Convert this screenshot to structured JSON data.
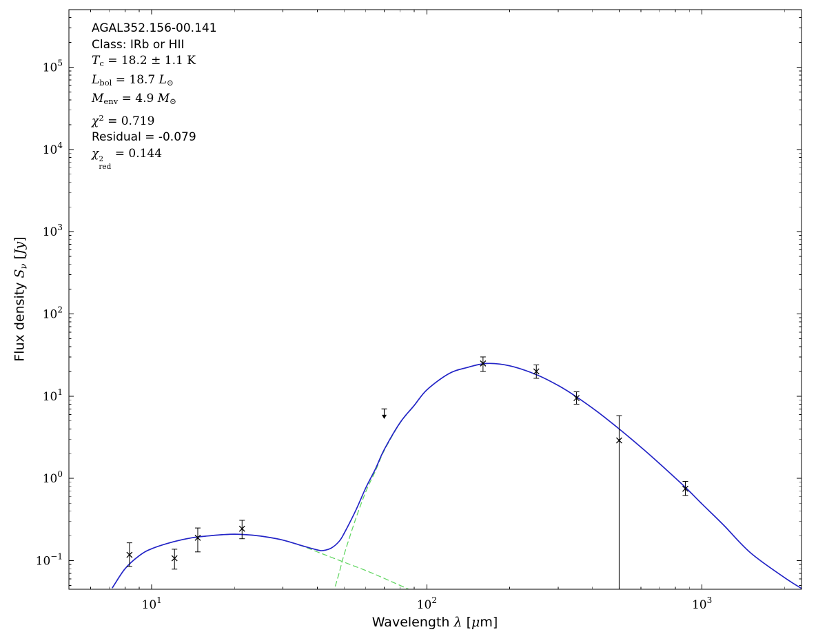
{
  "figure": {
    "background": "#ffffff"
  },
  "chart_data": {
    "type": "line",
    "title": "",
    "xscale": "log",
    "yscale": "log",
    "xlim": [
      5,
      2300
    ],
    "ylim": [
      0.045,
      500000
    ],
    "x_tick_exponents": [
      1,
      2,
      3
    ],
    "y_tick_exponents": [
      -1,
      0,
      1,
      2,
      3,
      4,
      5
    ],
    "grid": false,
    "legend": "none",
    "axis_color": "#000000",
    "marker_color": "#000000",
    "xlabel_segments": [
      {
        "t": "Wavelength "
      },
      {
        "t": "λ",
        "s": "mi"
      },
      {
        "t": " ["
      },
      {
        "t": "μ",
        "s": "mi"
      },
      {
        "t": "m]"
      }
    ],
    "ylabel_segments": [
      {
        "t": "Flux density "
      },
      {
        "t": "S",
        "s": "mi"
      },
      {
        "t": "ν",
        "s": "misub"
      },
      {
        "t": " ["
      },
      {
        "t": "Jy",
        "s": "mi"
      },
      {
        "t": "]"
      }
    ],
    "annotation_lines": [
      {
        "font": "sans",
        "segs": [
          {
            "t": "AGAL352.156-00.141"
          }
        ]
      },
      {
        "font": "sans",
        "segs": [
          {
            "t": "Class: IRb or HII"
          }
        ]
      },
      {
        "font": "math",
        "segs": [
          {
            "t": "T",
            "s": "mi"
          },
          {
            "t": "c",
            "s": "sub"
          },
          {
            "t": " = 18.2 ± 1.1 K"
          }
        ]
      },
      {
        "font": "math",
        "segs": [
          {
            "t": "L",
            "s": "mi"
          },
          {
            "t": "bol",
            "s": "sub"
          },
          {
            "t": " = 18.7 "
          },
          {
            "t": "L",
            "s": "mi"
          },
          {
            "t": "⊙",
            "s": "sub"
          }
        ]
      },
      {
        "font": "math",
        "segs": [
          {
            "t": "M",
            "s": "mi"
          },
          {
            "t": "env",
            "s": "sub"
          },
          {
            "t": " = 4.9 "
          },
          {
            "t": "M",
            "s": "mi"
          },
          {
            "t": "⊙",
            "s": "sub"
          }
        ]
      },
      {
        "font": "math",
        "segs": [
          {
            "t": "χ",
            "s": "mi"
          },
          {
            "t": "2",
            "s": "sup"
          },
          {
            "t": " = 0.719"
          }
        ]
      },
      {
        "font": "sans",
        "segs": [
          {
            "t": "Residual = -0.079"
          }
        ]
      },
      {
        "font": "math",
        "segs": [
          {
            "t": "χ",
            "s": "mi"
          },
          {
            "s": "stack",
            "sup": "2",
            "sub": "red"
          },
          {
            "t": " = 0.144"
          }
        ]
      }
    ],
    "series": [
      {
        "name": "warm-component-fit",
        "color": "#63d663",
        "dash": "dashed",
        "x": [
          7.2,
          8,
          9,
          10,
          12,
          14,
          16,
          18,
          20,
          23,
          26,
          30,
          35,
          40,
          45,
          50,
          55,
          60,
          65,
          70,
          80,
          90,
          100
        ],
        "y": [
          0.047,
          0.08,
          0.115,
          0.14,
          0.17,
          0.19,
          0.2,
          0.207,
          0.21,
          0.205,
          0.195,
          0.178,
          0.152,
          0.128,
          0.11,
          0.096,
          0.085,
          0.076,
          0.068,
          0.061,
          0.05,
          0.042,
          0.036
        ]
      },
      {
        "name": "cold-component-fit",
        "color": "#63d663",
        "dash": "dashed",
        "x": [
          40,
          45,
          48,
          50,
          55,
          60,
          65,
          70,
          80,
          90,
          100,
          120,
          140,
          165,
          200,
          250,
          300,
          350,
          420,
          500,
          600,
          700,
          870,
          1000,
          1200,
          1500,
          2000,
          2300
        ],
        "y": [
          0.0065,
          0.033,
          0.071,
          0.118,
          0.315,
          0.69,
          1.23,
          2.18,
          4.74,
          7.7,
          11.9,
          18.7,
          22.3,
          25.0,
          23.4,
          18.3,
          13.5,
          9.8,
          6.35,
          4.0,
          2.4,
          1.52,
          0.78,
          0.49,
          0.27,
          0.125,
          0.062,
          0.046
        ]
      },
      {
        "name": "total-fit",
        "color": "#2424c8",
        "dash": "solid",
        "x": [
          7.2,
          8,
          9,
          10,
          12,
          14,
          16,
          18,
          20,
          23,
          26,
          30,
          35,
          40,
          42,
          45,
          48,
          50,
          55,
          60,
          65,
          70,
          80,
          90,
          100,
          120,
          140,
          165,
          200,
          250,
          300,
          350,
          420,
          500,
          600,
          700,
          870,
          1000,
          1200,
          1500,
          2000,
          2300
        ],
        "y": [
          0.047,
          0.08,
          0.115,
          0.14,
          0.17,
          0.19,
          0.2,
          0.207,
          0.21,
          0.205,
          0.195,
          0.178,
          0.153,
          0.135,
          0.133,
          0.143,
          0.172,
          0.214,
          0.4,
          0.77,
          1.3,
          2.24,
          4.79,
          7.74,
          11.94,
          18.73,
          22.32,
          25.0,
          23.4,
          18.3,
          13.5,
          9.8,
          6.35,
          4.0,
          2.4,
          1.52,
          0.78,
          0.49,
          0.27,
          0.125,
          0.062,
          0.046
        ]
      }
    ],
    "points": [
      {
        "x": 8.3,
        "y": 0.118,
        "lo": 0.085,
        "hi": 0.165
      },
      {
        "x": 12.1,
        "y": 0.107,
        "lo": 0.079,
        "hi": 0.138
      },
      {
        "x": 14.7,
        "y": 0.19,
        "lo": 0.128,
        "hi": 0.25
      },
      {
        "x": 21.3,
        "y": 0.245,
        "lo": 0.185,
        "hi": 0.31
      },
      {
        "x": 160,
        "y": 25,
        "lo": 20,
        "hi": 30
      },
      {
        "x": 250,
        "y": 20,
        "lo": 16.5,
        "hi": 24
      },
      {
        "x": 350,
        "y": 9.5,
        "lo": 8.0,
        "hi": 11.3
      },
      {
        "x": 500,
        "y": 2.9,
        "lo": 0.01,
        "hi": 5.8
      },
      {
        "x": 870,
        "y": 0.75,
        "lo": 0.62,
        "hi": 0.92
      }
    ],
    "upper_limits": [
      {
        "x": 70,
        "top": 7.0,
        "tip": 5.4
      }
    ]
  }
}
